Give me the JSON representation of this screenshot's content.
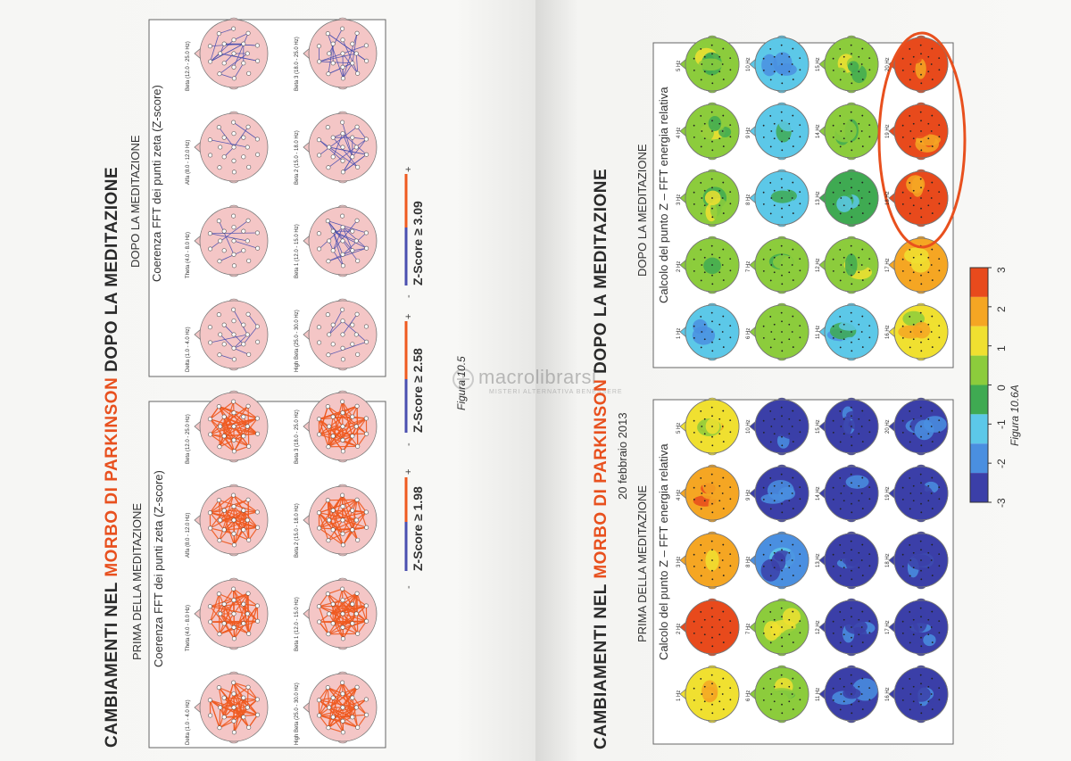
{
  "left_page": {
    "title_part1": "CAMBIAMENTI NEL",
    "title_highlight": "MORBO DI PARKINSON",
    "title_part2": "DOPO LA MEDITAZIONE",
    "before_panel": {
      "heading": "PRIMA DELLA MEDITAZIONE",
      "subheading": "Coerenza FFT dei punti zeta (Z-score)",
      "map_labels": [
        "Delta (1.0 - 4.0 Hz)",
        "Theta (4.0 - 8.0 Hz)",
        "Alfa (8.0 - 12.0 Hz)",
        "Beta (12.0 - 25.0 Hz)",
        "High Beta (25.0 - 30.0 Hz)",
        "Beta 1 (12.0 - 15.0 Hz)",
        "Beta 2 (15.0 - 18.0 Hz)",
        "Beta 3 (18.0 - 25.0 Hz)"
      ]
    },
    "after_panel": {
      "heading": "DOPO LA MEDITAZIONE",
      "subheading": "Coerenza FFT dei punti zeta (Z-score)",
      "map_labels": [
        "Delta (1.0 - 4.0 Hz)",
        "Theta (4.0 - 8.0 Hz)",
        "Alfa (8.0 - 12.0 Hz)",
        "Beta (12.0 - 25.0 Hz)",
        "High Beta (25.0 - 30.0 Hz)",
        "Beta 1 (12.0 - 15.0 Hz)",
        "Beta 2 (15.0 - 18.0 Hz)",
        "Beta 3 (18.0 - 25.0 Hz)"
      ]
    },
    "zscore_legends": [
      "Z-Score ≥ 1.98",
      "Z-Score ≥ 2.58",
      "Z-Score ≥ 3.09"
    ],
    "legend_minus": "-",
    "legend_plus": "+",
    "caption": "Figura 10.5"
  },
  "right_page": {
    "title_part1": "CAMBIAMENTI NEL",
    "title_highlight": "MORBO DI PARKINSON",
    "title_part2": "DOPO LA MEDITAZIONE",
    "date": "20 febbraio 2013",
    "before_panel": {
      "heading": "PRIMA DELLA MEDITAZIONE",
      "subheading": "Calcolo del punto Z – FFT energia relativa"
    },
    "after_panel": {
      "heading": "DOPO LA MEDITAZIONE",
      "subheading": "Calcolo del punto Z – FFT energia relativa"
    },
    "hz_labels": [
      "1 Hz",
      "2 Hz",
      "3 Hz",
      "4 Hz",
      "5 Hz",
      "6 Hz",
      "7 Hz",
      "8 Hz",
      "9 Hz",
      "10 Hz",
      "11 Hz",
      "12 Hz",
      "13 Hz",
      "14 Hz",
      "15 Hz",
      "16 Hz",
      "17 Hz",
      "18 Hz",
      "19 Hz",
      "20 Hz"
    ],
    "colorbar_ticks": [
      "-3",
      "-2",
      "-1",
      "0",
      "1",
      "2",
      "3"
    ],
    "colorbar_colors": [
      "#3b3fa8",
      "#4a8fe0",
      "#5cc8e8",
      "#3faa52",
      "#8ccc3c",
      "#f0e030",
      "#f5a623",
      "#e84a1c"
    ],
    "caption": "Figura 10.6A"
  },
  "watermark": {
    "brand": "macrolibrarsi",
    "tagline": "MISTERI ALTERNATIVA BENESSERE"
  },
  "colors": {
    "accent_orange": "#e8501e",
    "head_pink": "#f4c6c6",
    "line_orange": "#ef5a20",
    "line_blue": "#4a4fb0"
  }
}
